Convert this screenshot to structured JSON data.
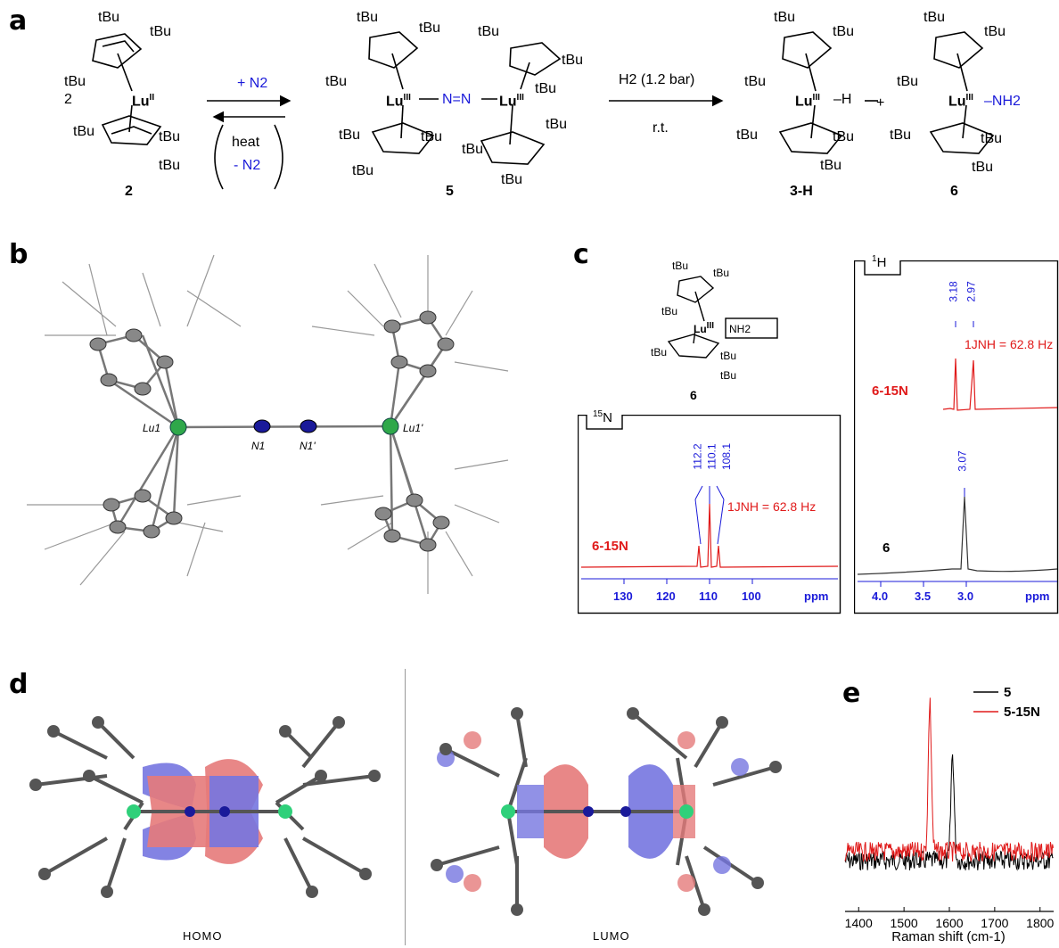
{
  "figure": {
    "panel_labels": [
      "a",
      "b",
      "c",
      "d",
      "e"
    ]
  },
  "panel_a": {
    "stoich": "2",
    "tbu": "tBu",
    "lu_ii": "Lu",
    "lu_ii_ox": "II",
    "lu_iii_ox": "III",
    "lu": "Lu",
    "arrow1_top": "+ N2",
    "arrow1_heat": "heat",
    "arrow1_minus": "- N2",
    "arrow2_top": "H2 (1.2 bar)",
    "arrow2_bottom": "r.t.",
    "dinitrogen": "N=N",
    "hydride": "H",
    "amide": "NH2",
    "plus": "+",
    "labels": [
      "2",
      "5",
      "3-H",
      "6"
    ]
  },
  "panel_b": {
    "atoms": [
      "Lu1",
      "N1",
      "N1'",
      "Lu1'"
    ]
  },
  "panel_c": {
    "compound_label": "6",
    "n15": {
      "box_label": "15N",
      "peaks": [
        "112.2",
        "110.1",
        "108.1"
      ],
      "coupling": "1JNH = 62.8 Hz",
      "trace_label": "6-15N",
      "ticks": [
        "130",
        "120",
        "110",
        "100"
      ],
      "unit": "ppm"
    },
    "h1": {
      "box_label": "1H",
      "peaks_top": [
        "3.18",
        "2.97"
      ],
      "coupling": "1JNH = 62.8 Hz",
      "trace_top": "6-15N",
      "peak_bottom": "3.07",
      "trace_bottom": "6",
      "ticks": [
        "4.0",
        "3.5",
        "3.0"
      ],
      "unit": "ppm"
    }
  },
  "panel_d": {
    "homo": "HOMO",
    "lumo": "LUMO"
  },
  "chart_data": {
    "type": "line",
    "xlabel": "Raman shift (cm-1)",
    "ylabel": "",
    "xlim": [
      1370,
      1830
    ],
    "xticks": [
      "1400",
      "1500",
      "1600",
      "1700",
      "1800"
    ],
    "series": [
      {
        "name": "5",
        "color": "#000000",
        "peak_x": 1607
      },
      {
        "name": "5-15N",
        "color": "#e01a1a",
        "peak_x": 1557
      }
    ],
    "legend": "top-right"
  }
}
